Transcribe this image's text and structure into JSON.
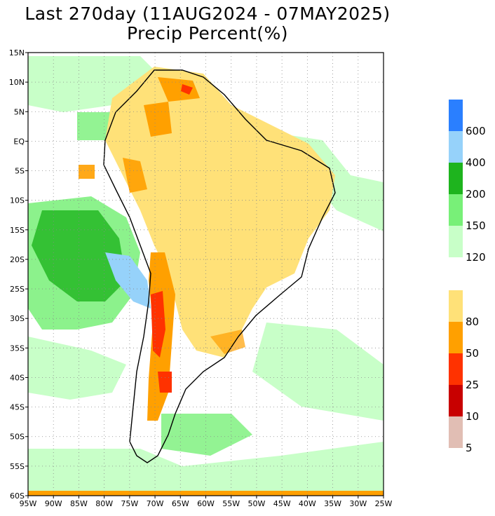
{
  "header": {
    "title_line1": "Last 270day (11AUG2024 - 07MAY2025)",
    "title_line2": "Precip Percent(%)"
  },
  "map": {
    "lat_labels": [
      "15N",
      "10N",
      "5N",
      "EQ",
      "5S",
      "10S",
      "15S",
      "20S",
      "25S",
      "30S",
      "35S",
      "40S",
      "45S",
      "50S",
      "55S",
      "60S"
    ],
    "lon_labels": [
      "95W",
      "90W",
      "85W",
      "80W",
      "75W",
      "70W",
      "65W",
      "60W",
      "55W",
      "50W",
      "45W",
      "40W",
      "35W",
      "30W",
      "25W"
    ],
    "extent": {
      "lon_min": -95,
      "lon_max": -25,
      "lat_min": -60,
      "lat_max": 15
    },
    "grid": "dotted"
  },
  "legend": {
    "upper": [
      {
        "color": "#2a7fff",
        "label": "600"
      },
      {
        "color": "#96d2fa",
        "label": "400"
      },
      {
        "color": "#1eb41e",
        "label": "200"
      },
      {
        "color": "#78f078",
        "label": "150"
      },
      {
        "color": "#c8ffc8",
        "label": "120"
      }
    ],
    "lower": [
      {
        "color": "#ffe178",
        "label": "80"
      },
      {
        "color": "#ffa000",
        "label": "50"
      },
      {
        "color": "#ff3200",
        "label": "25"
      },
      {
        "color": "#c80000",
        "label": "10"
      },
      {
        "color": "#e1beb4",
        "label": "5"
      }
    ]
  }
}
